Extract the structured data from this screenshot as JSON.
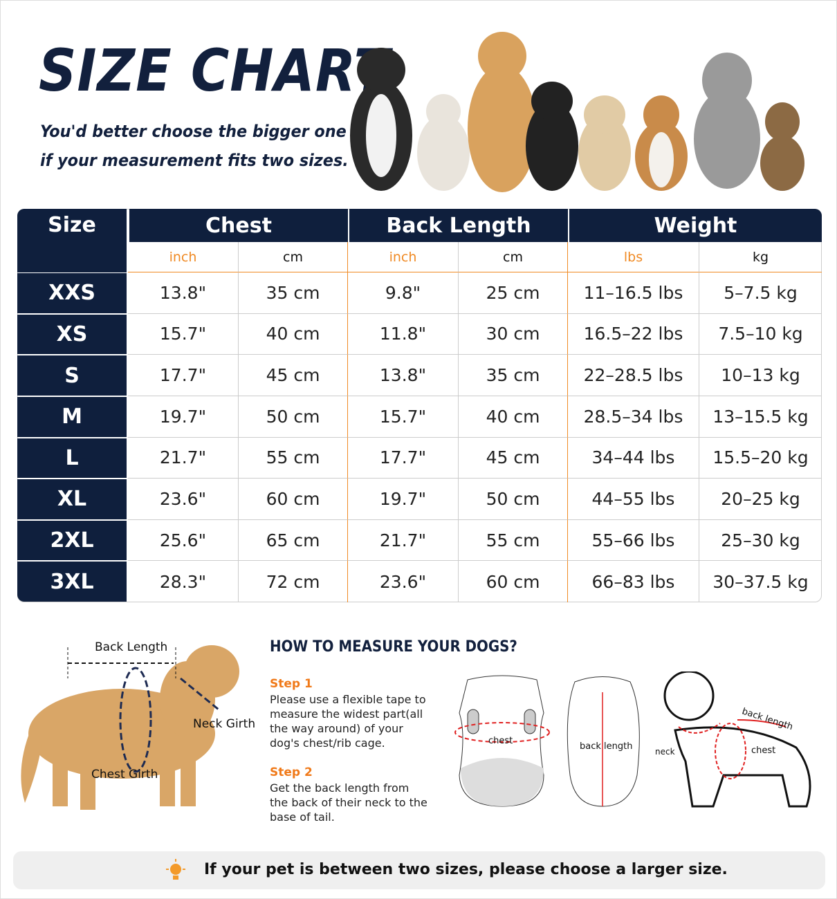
{
  "header": {
    "title": "SIZE CHART",
    "subtitle_lines": [
      "You'd better choose the bigger one",
      "if your measurement fits two sizes."
    ]
  },
  "table": {
    "headers": [
      "Size",
      "Chest",
      "Back Length",
      "Weight"
    ],
    "units": [
      "inch",
      "cm",
      "inch",
      "cm",
      "lbs",
      "kg"
    ],
    "rows": [
      [
        "XXS",
        "13.8\"",
        "35 cm",
        "9.8\"",
        "25 cm",
        "11–16.5 lbs",
        "5–7.5 kg"
      ],
      [
        "XS",
        "15.7\"",
        "40 cm",
        "11.8\"",
        "30 cm",
        "16.5–22 lbs",
        "7.5–10 kg"
      ],
      [
        "S",
        "17.7\"",
        "45 cm",
        "13.8\"",
        "35 cm",
        "22–28.5 lbs",
        "10–13 kg"
      ],
      [
        "M",
        "19.7\"",
        "50 cm",
        "15.7\"",
        "40 cm",
        "28.5–34 lbs",
        "13–15.5 kg"
      ],
      [
        "L",
        "21.7\"",
        "55 cm",
        "17.7\"",
        "45 cm",
        "34–44 lbs",
        "15.5–20 kg"
      ],
      [
        "XL",
        "23.6\"",
        "60 cm",
        "19.7\"",
        "50 cm",
        "44–55 lbs",
        "20–25 kg"
      ],
      [
        "2XL",
        "25.6\"",
        "65 cm",
        "21.7\"",
        "55 cm",
        "55–66 lbs",
        "25–30 kg"
      ],
      [
        "3XL",
        "28.3\"",
        "72 cm",
        "23.6\"",
        "60 cm",
        "66–83 lbs",
        "30–37.5 kg"
      ]
    ]
  },
  "measure": {
    "photo_labels": {
      "back_length": "Back Length",
      "neck_girth": "Neck Girth",
      "chest_girth": "Chest Girth"
    },
    "title": "HOW TO MEASURE YOUR DOGS?",
    "steps": [
      {
        "title": "Step 1",
        "text": "Please use a flexible tape to measure the widest part(all the way around) of your dog's chest/rib cage."
      },
      {
        "title": "Step 2",
        "text": "Get the back length from the back of their neck to the base of tail."
      }
    ],
    "garment_labels": [
      "chest",
      "back length"
    ],
    "dog_labels": [
      "back length",
      "neck",
      "chest"
    ]
  },
  "footer": {
    "note": "If your pet is between two sizes, please choose a larger size."
  }
}
